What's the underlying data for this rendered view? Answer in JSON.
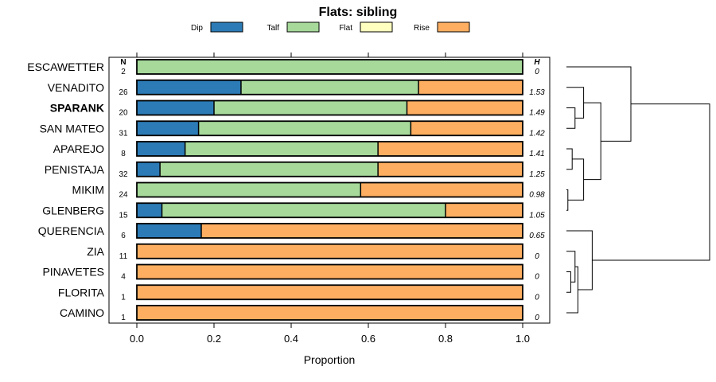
{
  "chart_data": {
    "type": "bar",
    "stacked": true,
    "orientation": "horizontal",
    "title": "Flats: sibling",
    "xlabel": "Proportion",
    "ylabel": "",
    "xlim": [
      0,
      1
    ],
    "x_ticks": [
      "0.0",
      "0.2",
      "0.4",
      "0.6",
      "0.8",
      "1.0"
    ],
    "x_tick_values": [
      0,
      0.2,
      0.4,
      0.6,
      0.8,
      1.0
    ],
    "legend_position": "top",
    "legend": [
      {
        "name": "Dip",
        "color": "#2c7bb6"
      },
      {
        "name": "Talf",
        "color": "#a6d99a"
      },
      {
        "name": "Flat",
        "color": "#ffffbf"
      },
      {
        "name": "Rise",
        "color": "#fdae61"
      }
    ],
    "n_header": "N",
    "h_header": "H",
    "highlighted_category": "SPARANK",
    "categories": [
      "ESCAWETTER",
      "VENADITO",
      "SPARANK",
      "SAN MATEO",
      "APAREJO",
      "PENISTAJA",
      "MIKIM",
      "GLENBERG",
      "QUERENCIA",
      "ZIA",
      "PINAVETES",
      "FLORITA",
      "CAMINO"
    ],
    "n": [
      "2",
      "26",
      "20",
      "31",
      "8",
      "32",
      "24",
      "15",
      "6",
      "11",
      "4",
      "1",
      "1"
    ],
    "h": [
      "0",
      "1.53",
      "1.49",
      "1.42",
      "1.41",
      "1.25",
      "0.98",
      "1.05",
      "0.65",
      "0",
      "0",
      "0",
      "0"
    ],
    "series": [
      {
        "name": "Dip",
        "values": [
          0,
          0.27,
          0.2,
          0.16,
          0.125,
          0.06,
          0,
          0.065,
          0.167,
          0,
          0,
          0,
          0
        ]
      },
      {
        "name": "Talf",
        "values": [
          1.0,
          0.46,
          0.5,
          0.55,
          0.5,
          0.565,
          0.58,
          0.735,
          0,
          0,
          0,
          0,
          0
        ]
      },
      {
        "name": "Flat",
        "values": [
          0,
          0,
          0,
          0,
          0,
          0,
          0,
          0,
          0,
          0,
          0,
          0,
          0
        ]
      },
      {
        "name": "Rise",
        "values": [
          0,
          0.27,
          0.3,
          0.29,
          0.375,
          0.375,
          0.42,
          0.2,
          0.833,
          1.0,
          1.0,
          1.0,
          1.0
        ]
      }
    ],
    "dendrogram": {
      "leaves": [
        "ESCAWETTER",
        "VENADITO",
        "SPARANK",
        "SAN MATEO",
        "APAREJO",
        "PENISTAJA",
        "MIKIM",
        "GLENBERG",
        "QUERENCIA",
        "ZIA",
        "PINAVETES",
        "FLORITA",
        "CAMINO"
      ],
      "merges": [
        {
          "a": "SPARANK",
          "b": "SAN MATEO",
          "height": 0.06
        },
        {
          "a": "VENADITO",
          "b": "SPARANK+SAN MATEO",
          "height": 0.12
        },
        {
          "a": "APAREJO",
          "b": "PENISTAJA",
          "height": 0.04
        },
        {
          "a": "MIKIM",
          "b": "GLENBERG",
          "height": 0.01
        },
        {
          "a": "APAREJO+PENISTAJA",
          "b": "MIKIM+GLENBERG",
          "height": 0.12
        },
        {
          "a": "VENADITO+SPARANK+SAN MATEO",
          "b": "APAREJO+PENISTAJA+MIKIM+GLENBERG",
          "height": 0.24
        },
        {
          "a": "ESCAWETTER",
          "b": "VENADITO..GLENBERG",
          "height": 0.45
        },
        {
          "a": "PINAVETES",
          "b": "FLORITA",
          "height": 0.03
        },
        {
          "a": "ZIA",
          "b": "PINAVETES+FLORITA",
          "height": 0.06
        },
        {
          "a": "ZIA+PINAVETES+FLORITA",
          "b": "CAMINO",
          "height": 0.08
        },
        {
          "a": "QUERENCIA",
          "b": "ZIA..CAMINO",
          "height": 0.18
        },
        {
          "a": "ESCAWETTER..GLENBERG",
          "b": "QUERENCIA..CAMINO",
          "height": 1.0
        }
      ]
    }
  }
}
